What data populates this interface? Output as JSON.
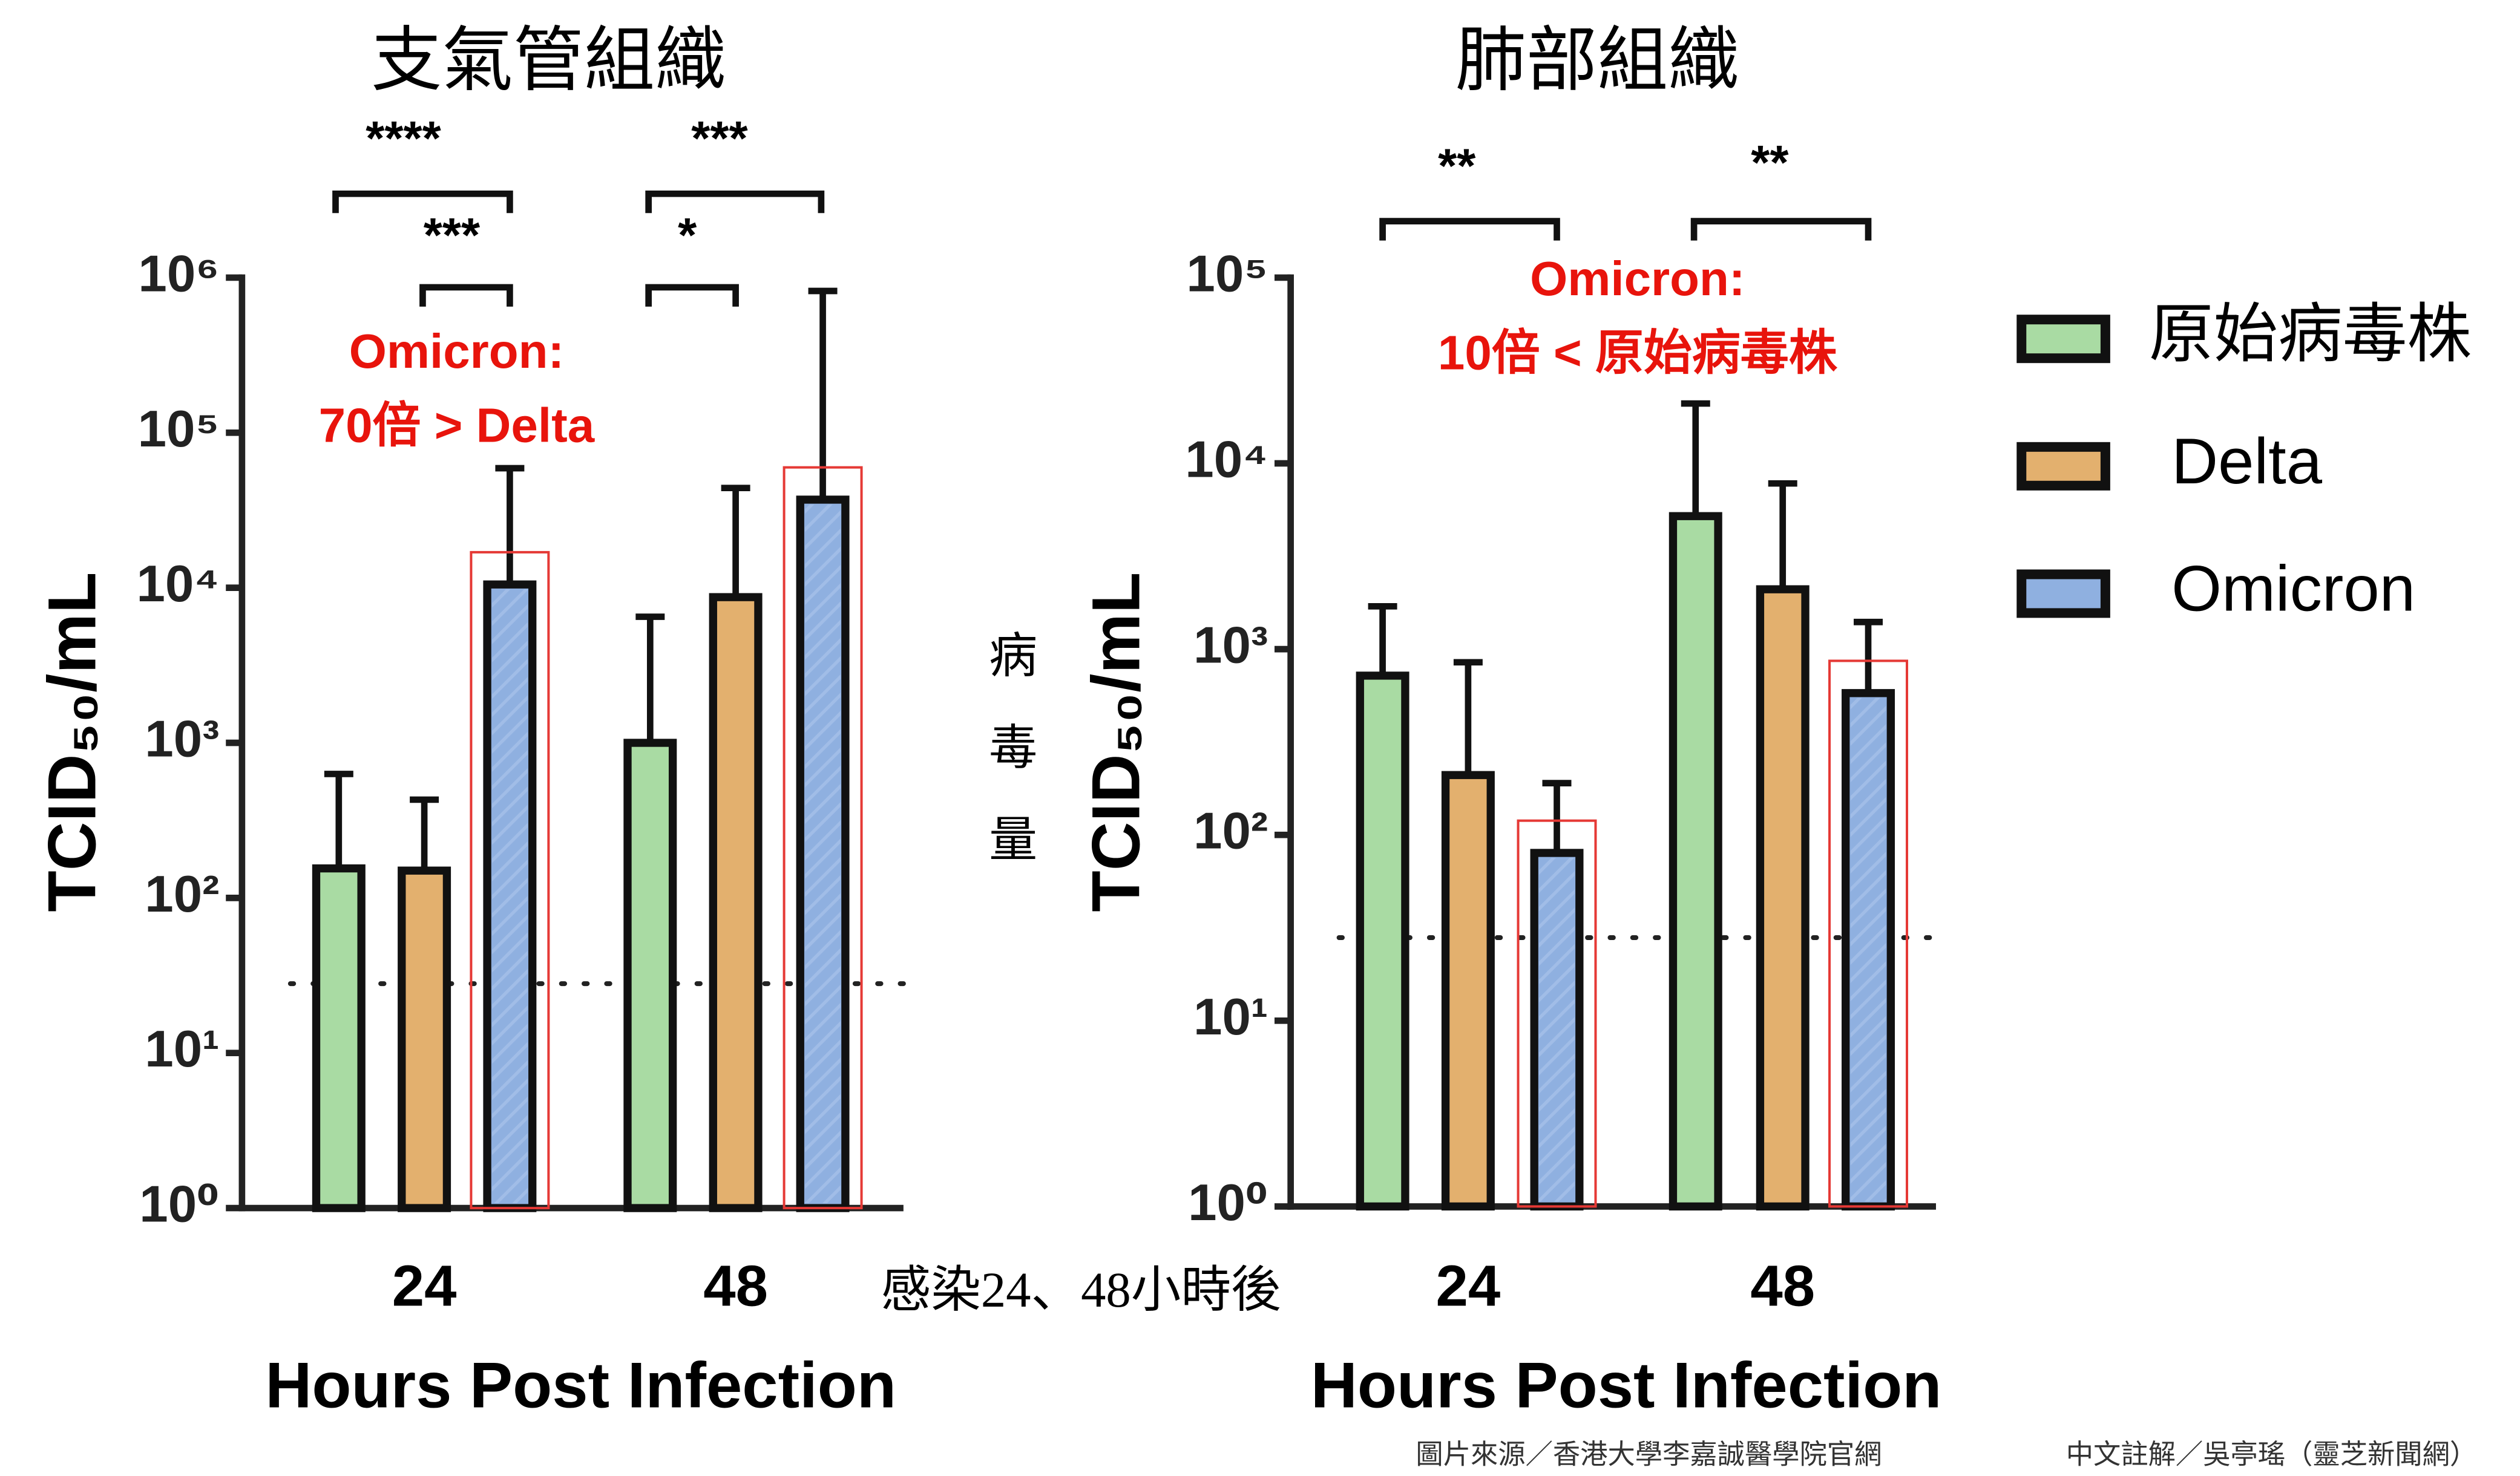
{
  "chart_data": [
    {
      "type": "bar",
      "title": "支氣管組織",
      "y_label": "TCID₅₀/mL",
      "x_label": "Hours Post Infection",
      "log_scale": true,
      "categories": [
        "24",
        "48"
      ],
      "ylim": [
        1,
        1000000
      ],
      "yticks": [
        {
          "value": 1,
          "label": "10⁰"
        },
        {
          "value": 10,
          "label": "10¹"
        },
        {
          "value": 100,
          "label": "10²"
        },
        {
          "value": 1000,
          "label": "10³"
        },
        {
          "value": 10000,
          "label": "10⁴"
        },
        {
          "value": 100000,
          "label": "10⁵"
        },
        {
          "value": 1000000,
          "label": "10⁶"
        }
      ],
      "series": [
        {
          "name": "原始病毒株",
          "color": "#a9dba3",
          "values": [
            155,
            1000
          ],
          "errors": [
            475,
            5500
          ]
        },
        {
          "name": "Delta",
          "color": "#e3b06e",
          "values": [
            150,
            8700
          ],
          "errors": [
            280,
            35300
          ]
        },
        {
          "name": "Omicron",
          "color": "#8fb0e0",
          "values": [
            10500,
            37000
          ],
          "errors": [
            48500,
            783000
          ]
        }
      ],
      "limit_of_detection": 28,
      "significance": [
        "****",
        "***",
        "***",
        "*"
      ],
      "note": [
        "Omicron:",
        "70倍 > Delta"
      ]
    },
    {
      "type": "bar",
      "title": "肺部組織",
      "y_label": "TCID₅₀/mL",
      "x_label": "Hours Post Infection",
      "log_scale": true,
      "categories": [
        "24",
        "48"
      ],
      "ylim": [
        1,
        100000
      ],
      "yticks": [
        {
          "value": 1,
          "label": "10⁰"
        },
        {
          "value": 10,
          "label": "10¹"
        },
        {
          "value": 100,
          "label": "10²"
        },
        {
          "value": 1000,
          "label": "10³"
        },
        {
          "value": 10000,
          "label": "10⁴"
        },
        {
          "value": 100000,
          "label": "10⁵"
        }
      ],
      "series": [
        {
          "name": "原始病毒株",
          "color": "#a9dba3",
          "values": [
            720,
            5200
          ],
          "errors": [
            980,
            15800
          ]
        },
        {
          "name": "Delta",
          "color": "#e3b06e",
          "values": [
            210,
            2100
          ],
          "errors": [
            640,
            5700
          ]
        },
        {
          "name": "Omicron",
          "color": "#8fb0e0",
          "values": [
            80,
            580
          ],
          "errors": [
            110,
            820
          ]
        }
      ],
      "limit_of_detection": 28,
      "significance": [
        "**",
        "**"
      ],
      "note": [
        "Omicron:",
        "10倍 < 原始病毒株"
      ]
    }
  ],
  "side_label": [
    "病",
    "毒",
    "量"
  ],
  "time_note": "感染24、48小時後",
  "source": "圖片來源／香港大學李嘉誠醫學院官網",
  "annotation_credit": "中文註解／吳亭瑤（靈芝新聞網）"
}
